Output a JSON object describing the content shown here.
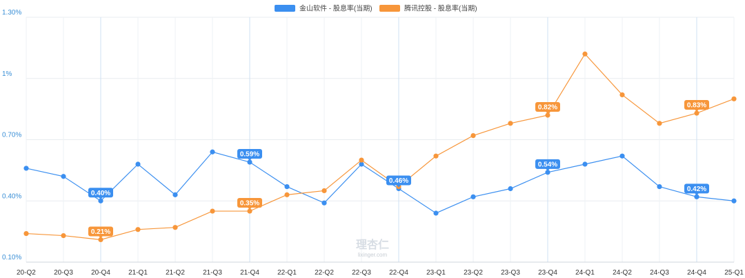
{
  "chart_data": {
    "type": "line",
    "categories": [
      "20-Q2",
      "20-Q3",
      "20-Q4",
      "21-Q1",
      "21-Q2",
      "21-Q3",
      "21-Q4",
      "22-Q1",
      "22-Q2",
      "22-Q3",
      "22-Q4",
      "23-Q1",
      "23-Q2",
      "23-Q3",
      "23-Q4",
      "24-Q1",
      "24-Q2",
      "24-Q3",
      "24-Q4",
      "25-Q1"
    ],
    "series": [
      {
        "name": "金山软件 - 股息率(当期)",
        "color": "#3b8ff0",
        "values": [
          0.56,
          0.52,
          0.4,
          0.58,
          0.43,
          0.64,
          0.59,
          0.47,
          0.39,
          0.58,
          0.46,
          0.34,
          0.42,
          0.46,
          0.54,
          0.58,
          0.62,
          0.47,
          0.42,
          0.4
        ],
        "labels": [
          {
            "index": 2,
            "text": "0.40%"
          },
          {
            "index": 6,
            "text": "0.59%"
          },
          {
            "index": 10,
            "text": "0.46%"
          },
          {
            "index": 14,
            "text": "0.54%"
          },
          {
            "index": 18,
            "text": "0.42%"
          }
        ]
      },
      {
        "name": "腾讯控股 - 股息率(当期)",
        "color": "#f7963a",
        "values": [
          0.24,
          0.23,
          0.21,
          0.26,
          0.27,
          0.35,
          0.35,
          0.43,
          0.45,
          0.6,
          0.47,
          0.62,
          0.72,
          0.78,
          0.82,
          1.12,
          0.92,
          0.78,
          0.83,
          0.9
        ],
        "labels": [
          {
            "index": 2,
            "text": "0.21%"
          },
          {
            "index": 6,
            "text": "0.35%"
          },
          {
            "index": 14,
            "text": "0.82%"
          },
          {
            "index": 18,
            "text": "0.83%"
          }
        ]
      }
    ],
    "y_ticks": [
      {
        "value": 0.1,
        "label": "0.10%"
      },
      {
        "value": 0.4,
        "label": "0.40%"
      },
      {
        "value": 0.7,
        "label": "0.70%"
      },
      {
        "value": 1.0,
        "label": "1%"
      },
      {
        "value": 1.3,
        "label": "1.30%"
      }
    ],
    "ylim": [
      0.1,
      1.3
    ],
    "grid": true,
    "legend": "top-center",
    "watermark": {
      "main": "理杏仁",
      "sub": "lixinger.com"
    }
  }
}
